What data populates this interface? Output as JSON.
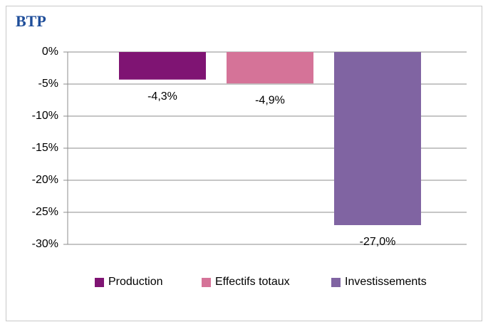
{
  "chart_data": {
    "type": "bar",
    "title": "BTP",
    "series": [
      {
        "name": "Production",
        "color": "#7f1473",
        "values": [
          -4.3
        ],
        "value_labels": [
          "-4,3%"
        ]
      },
      {
        "name": "Effectifs totaux",
        "color": "#d57398",
        "values": [
          -4.9
        ],
        "value_labels": [
          "-4,9%"
        ]
      },
      {
        "name": "Investissements",
        "color": "#8064a2",
        "values": [
          -27.0
        ],
        "value_labels": [
          "-27,0%"
        ]
      }
    ],
    "ylim": [
      -30,
      0
    ],
    "yticks": [
      {
        "value": 0,
        "label": "0%"
      },
      {
        "value": -5,
        "label": "-5%"
      },
      {
        "value": -10,
        "label": "-10%"
      },
      {
        "value": -15,
        "label": "-15%"
      },
      {
        "value": -20,
        "label": "-20%"
      },
      {
        "value": -25,
        "label": "-25%"
      },
      {
        "value": -30,
        "label": "-30%"
      }
    ],
    "grid": true,
    "legend": "bottom"
  }
}
